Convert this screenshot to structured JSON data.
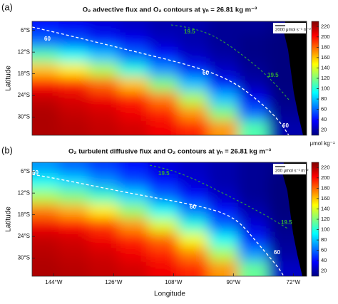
{
  "chart_data": [
    {
      "type": "heatmap",
      "panel_label": "(a)",
      "title": "O₂ advective flux and O₂ contours at γₙ = 26.81 kg m⁻³",
      "ylabel": "Latitude",
      "scale_label": "2000 μmol s⁻¹ m⁻²",
      "colorbar_label": "μmol kg⁻¹",
      "contour_labels": [
        "60",
        "60",
        "60",
        "19.5",
        "19.5"
      ],
      "xlim": [
        -150.5,
        -68
      ],
      "ylim": [
        -35,
        -3.5
      ],
      "yticks": [
        {
          "value": -6,
          "label": "6°S"
        },
        {
          "value": -12,
          "label": "12°S"
        },
        {
          "value": -18,
          "label": "18°S"
        },
        {
          "value": -24,
          "label": "24°S"
        },
        {
          "value": -30,
          "label": "30°S"
        }
      ],
      "x": [
        -147,
        -138,
        -129,
        -120,
        -111,
        -102,
        -93,
        -84,
        -75
      ],
      "y": [
        -5,
        -9,
        -13,
        -17,
        -21,
        -25,
        -29,
        -33
      ],
      "z": [
        [
          40,
          35,
          30,
          25,
          20,
          20,
          15,
          15,
          12
        ],
        [
          60,
          55,
          45,
          35,
          25,
          20,
          15,
          12,
          10
        ],
        [
          110,
          95,
          80,
          60,
          40,
          25,
          18,
          12,
          10
        ],
        [
          160,
          150,
          130,
          100,
          70,
          45,
          25,
          15,
          10
        ],
        [
          200,
          195,
          180,
          160,
          120,
          80,
          45,
          20,
          10
        ],
        [
          215,
          210,
          205,
          195,
          175,
          130,
          80,
          35,
          12
        ],
        [
          220,
          215,
          212,
          205,
          195,
          170,
          120,
          60,
          15
        ],
        [
          220,
          218,
          215,
          212,
          205,
          195,
          170,
          110,
          20
        ]
      ],
      "colorbar_lim": [
        10,
        230
      ],
      "colorbar_ticks": [
        20,
        40,
        60,
        80,
        100,
        120,
        140,
        160,
        180,
        200,
        220
      ],
      "colormap": [
        "#00007f",
        "#0000ff",
        "#007fff",
        "#00ffff",
        "#7fff7f",
        "#ffff00",
        "#ff7f00",
        "#ff0000",
        "#7f0000"
      ]
    },
    {
      "type": "heatmap",
      "panel_label": "(b)",
      "title": "O₂ turbulent diffusive flux and O₂ contours at γₙ = 26.81 kg m⁻³",
      "ylabel": "Latitude",
      "xlabel": "Longitude",
      "scale_label": "200 μmol s⁻¹ m⁻²",
      "contour_labels": [
        "60",
        "60",
        "60",
        "19.5",
        "19.5"
      ],
      "xlim": [
        -150.5,
        -68
      ],
      "ylim": [
        -35,
        -3.5
      ],
      "yticks": [
        {
          "value": -6,
          "label": "6°S"
        },
        {
          "value": -12,
          "label": "12°S"
        },
        {
          "value": -18,
          "label": "18°S"
        },
        {
          "value": -24,
          "label": "24°S"
        },
        {
          "value": -30,
          "label": "30°S"
        }
      ],
      "xticks": [
        {
          "value": -144,
          "label": "144°W"
        },
        {
          "value": -126,
          "label": "126°W"
        },
        {
          "value": -108,
          "label": "108°W"
        },
        {
          "value": -90,
          "label": "90°W"
        },
        {
          "value": -72,
          "label": "72°W"
        }
      ],
      "x": [
        -147,
        -138,
        -129,
        -120,
        -111,
        -102,
        -93,
        -84,
        -75
      ],
      "y": [
        -5,
        -9,
        -13,
        -17,
        -21,
        -25,
        -29,
        -33
      ],
      "z": [
        [
          70,
          60,
          50,
          40,
          30,
          25,
          20,
          15,
          12
        ],
        [
          95,
          85,
          70,
          55,
          40,
          28,
          20,
          15,
          10
        ],
        [
          130,
          120,
          105,
          85,
          60,
          40,
          25,
          15,
          10
        ],
        [
          175,
          165,
          150,
          125,
          95,
          65,
          40,
          20,
          10
        ],
        [
          205,
          200,
          190,
          170,
          140,
          100,
          60,
          30,
          12
        ],
        [
          215,
          212,
          205,
          195,
          180,
          145,
          95,
          45,
          15
        ],
        [
          218,
          215,
          212,
          205,
          195,
          175,
          130,
          70,
          18
        ],
        [
          220,
          218,
          215,
          212,
          205,
          195,
          170,
          115,
          25
        ]
      ],
      "colorbar_lim": [
        10,
        230
      ],
      "colorbar_ticks": [
        20,
        40,
        60,
        80,
        100,
        120,
        140,
        160,
        180,
        200,
        220
      ],
      "colormap": [
        "#00007f",
        "#0000ff",
        "#007fff",
        "#00ffff",
        "#7fff7f",
        "#ffff00",
        "#ff7f00",
        "#ff0000",
        "#7f0000"
      ]
    }
  ]
}
